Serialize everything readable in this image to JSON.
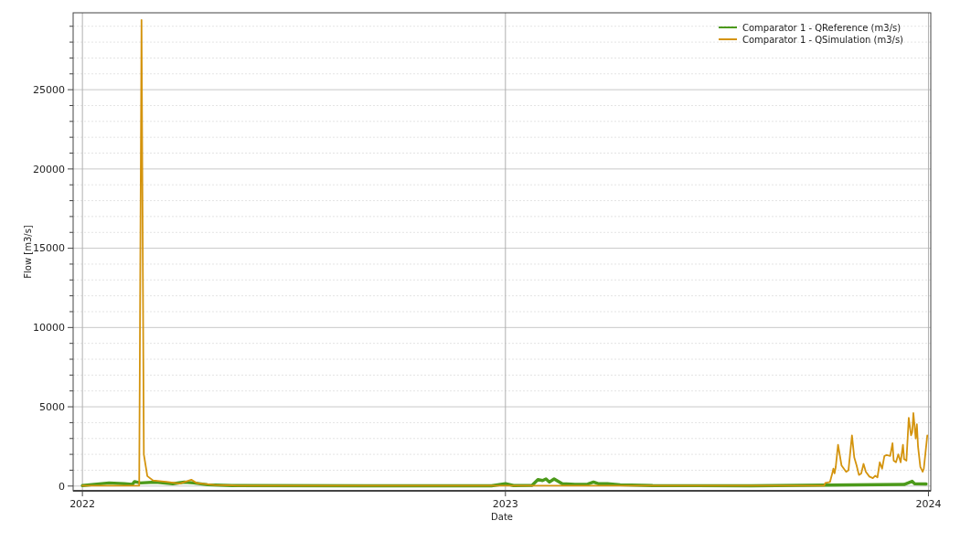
{
  "chart_data": {
    "type": "line",
    "xlabel": "Date",
    "ylabel": "Flow [m3/s]",
    "xlim": [
      "2021-12-24",
      "2024-01-03"
    ],
    "xticks": [
      "2022",
      "2023",
      "2024"
    ],
    "ylim": [
      -300,
      29850
    ],
    "yticks": [
      0,
      {
        "value": 1000,
        "label": null
      },
      {
        "value": 2000,
        "label": null
      },
      {
        "value": 3000,
        "label": null
      },
      {
        "value": 4000,
        "label": null
      },
      5000,
      {
        "value": 6000,
        "label": null
      },
      {
        "value": 7000,
        "label": null
      },
      {
        "value": 8000,
        "label": null
      },
      {
        "value": 9000,
        "label": null
      },
      10000,
      {
        "value": 11000,
        "label": null
      },
      {
        "value": 12000,
        "label": null
      },
      {
        "value": 13000,
        "label": null
      },
      {
        "value": 14000,
        "label": null
      },
      15000,
      {
        "value": 16000,
        "label": null
      },
      {
        "value": 17000,
        "label": null
      },
      {
        "value": 18000,
        "label": null
      },
      {
        "value": 19000,
        "label": null
      },
      20000,
      {
        "value": 21000,
        "label": null
      },
      {
        "value": 22000,
        "label": null
      },
      {
        "value": 23000,
        "label": null
      },
      {
        "value": 24000,
        "label": null
      },
      25000,
      {
        "value": 26000,
        "label": null
      },
      {
        "value": 27000,
        "label": null
      },
      {
        "value": 28000,
        "label": null
      },
      {
        "value": 29000,
        "label": null
      }
    ],
    "grid": true,
    "legend": "top right",
    "marker": "none",
    "line_style": "solid",
    "series": [
      {
        "name": "Comparator 1 - QReference (m3/s)",
        "color": "#4c9a1a",
        "x": [
          "2022-01-01",
          "2022-01-24",
          "2022-02-06",
          "2022-02-13",
          "2022-02-15",
          "2022-02-20",
          "2022-03-05",
          "2022-03-20",
          "2022-03-30",
          "2022-04-07",
          "2022-04-19",
          "2022-05-10",
          "2022-09-01",
          "2022-12-20",
          "2023-01-01",
          "2023-01-08",
          "2023-01-24",
          "2023-01-29",
          "2023-02-02",
          "2023-02-05",
          "2023-02-08",
          "2023-02-12",
          "2023-02-19",
          "2023-03-02",
          "2023-03-13",
          "2023-03-18",
          "2023-03-22",
          "2023-03-30",
          "2023-04-10",
          "2023-05-08",
          "2023-08-01",
          "2023-12-11",
          "2023-12-18",
          "2023-12-20",
          "2023-12-30"
        ],
        "values": [
          30,
          200,
          150,
          100,
          280,
          200,
          250,
          150,
          250,
          200,
          80,
          30,
          20,
          20,
          150,
          30,
          50,
          410,
          350,
          450,
          250,
          450,
          150,
          100,
          120,
          250,
          150,
          150,
          80,
          30,
          20,
          100,
          300,
          150,
          130
        ]
      },
      {
        "name": "Comparator 1 - QSimulation (m3/s)",
        "color": "#d4940e",
        "x": [
          "2022-01-01",
          "2022-02-17",
          "2022-02-19",
          "2022-02-21",
          "2022-02-23",
          "2022-02-26",
          "2022-03-03",
          "2022-03-16",
          "2022-03-26",
          "2022-04-05",
          "2022-04-10",
          "2022-04-25",
          "2022-05-15",
          "2023-10-03",
          "2023-10-04",
          "2023-10-08",
          "2023-10-10",
          "2023-10-11",
          "2023-10-12",
          "2023-10-13",
          "2023-10-15",
          "2023-10-18",
          "2023-10-22",
          "2023-10-24",
          "2023-10-27",
          "2023-10-29",
          "2023-10-31",
          "2023-11-02",
          "2023-11-04",
          "2023-11-06",
          "2023-11-08",
          "2023-11-11",
          "2023-11-14",
          "2023-11-16",
          "2023-11-18",
          "2023-11-20",
          "2023-11-22",
          "2023-11-24",
          "2023-11-26",
          "2023-11-29",
          "2023-12-01",
          "2023-12-02",
          "2023-12-04",
          "2023-12-06",
          "2023-12-08",
          "2023-12-10",
          "2023-12-11",
          "2023-12-13",
          "2023-12-15",
          "2023-12-17",
          "2023-12-18",
          "2023-12-19",
          "2023-12-21",
          "2023-12-22",
          "2023-12-23",
          "2023-12-25",
          "2023-12-27",
          "2023-12-28",
          "2023-12-31"
        ],
        "values": [
          20,
          30,
          30,
          29400,
          2000,
          630,
          350,
          250,
          150,
          400,
          180,
          70,
          30,
          30,
          200,
          250,
          800,
          1100,
          800,
          1200,
          2600,
          1300,
          900,
          1000,
          3200,
          1800,
          1300,
          700,
          800,
          1400,
          900,
          600,
          500,
          650,
          550,
          1500,
          1100,
          1900,
          1950,
          1900,
          2700,
          1600,
          1500,
          2000,
          1500,
          2600,
          1700,
          1600,
          4300,
          3200,
          3400,
          4600,
          3000,
          3900,
          2500,
          1200,
          900,
          1100,
          3200
        ]
      }
    ]
  }
}
